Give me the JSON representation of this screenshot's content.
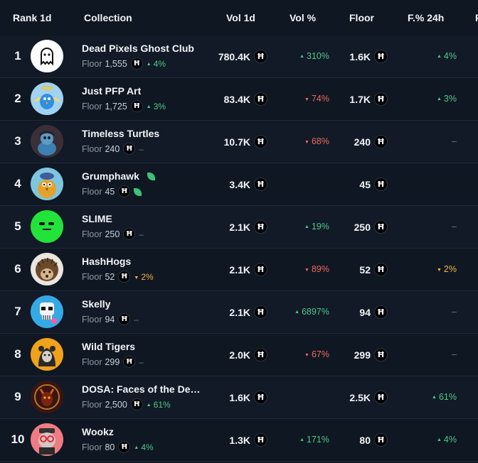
{
  "header": {
    "rank": "Rank 1d",
    "collection": "Collection",
    "vol": "Vol 1d",
    "vol_pct": "Vol %",
    "floor": "Floor",
    "floor_pct": "F.% 24h",
    "cut": "F"
  },
  "currency_symbol": "Ħ",
  "floor_label": "Floor",
  "rows": [
    {
      "rank": "1",
      "name": "Dead Pixels Ghost Club",
      "floor": "1,555",
      "sub_change": "4%",
      "sub_dir": "up",
      "vol": "780.4K",
      "vol_pct": "310%",
      "vol_dir": "up",
      "floor_big": "1.6K",
      "fp": "4%",
      "fp_dir": "up",
      "avatar": "ghost-avatar",
      "avatar_bg": "#ffffff"
    },
    {
      "rank": "2",
      "name": "Just PFP Art",
      "floor": "1,725",
      "sub_change": "3%",
      "sub_dir": "up",
      "vol": "83.4K",
      "vol_pct": "74%",
      "vol_dir": "down",
      "floor_big": "1.7K",
      "fp": "3%",
      "fp_dir": "up",
      "avatar": "angel-bird-avatar",
      "avatar_bg": "#9fd2f3"
    },
    {
      "rank": "3",
      "name": "Timeless Turtles",
      "floor": "240",
      "sub_change": "–",
      "sub_dir": "none",
      "vol": "10.7K",
      "vol_pct": "68%",
      "vol_dir": "down",
      "floor_big": "240",
      "fp": "–",
      "fp_dir": "none",
      "avatar": "turtle-avatar",
      "avatar_bg": "#3a2f38"
    },
    {
      "rank": "4",
      "name": "Grumphawk",
      "floor": "45",
      "sub_change": "",
      "sub_dir": "leaf",
      "vol": "3.4K",
      "vol_pct": "",
      "vol_dir": "none",
      "floor_big": "45",
      "fp": "",
      "fp_dir": "none",
      "avatar": "hawk-avatar",
      "avatar_bg": "#7ec6e0"
    },
    {
      "rank": "5",
      "name": "SLIME",
      "floor": "250",
      "sub_change": "–",
      "sub_dir": "none",
      "vol": "2.1K",
      "vol_pct": "19%",
      "vol_dir": "up",
      "floor_big": "250",
      "fp": "–",
      "fp_dir": "none",
      "avatar": "slime-avatar",
      "avatar_bg": "#22e33a"
    },
    {
      "rank": "6",
      "name": "HashHogs",
      "floor": "52",
      "sub_change": "2%",
      "sub_dir": "warn",
      "vol": "2.1K",
      "vol_pct": "89%",
      "vol_dir": "down",
      "floor_big": "52",
      "fp": "2%",
      "fp_dir": "warn",
      "avatar": "hedgehog-avatar",
      "avatar_bg": "#e9e6df"
    },
    {
      "rank": "7",
      "name": "Skelly",
      "floor": "94",
      "sub_change": "–",
      "sub_dir": "none",
      "vol": "2.1K",
      "vol_pct": "6897%",
      "vol_dir": "up",
      "floor_big": "94",
      "fp": "–",
      "fp_dir": "none",
      "avatar": "skull-avatar",
      "avatar_bg": "#35a9e6"
    },
    {
      "rank": "8",
      "name": "Wild Tigers",
      "floor": "299",
      "sub_change": "–",
      "sub_dir": "none",
      "vol": "2.0K",
      "vol_pct": "67%",
      "vol_dir": "down",
      "floor_big": "299",
      "fp": "–",
      "fp_dir": "none",
      "avatar": "tiger-avatar",
      "avatar_bg": "#f0a21b"
    },
    {
      "rank": "9",
      "name": "DOSA: Faces of the Dem…",
      "floor": "2,500",
      "sub_change": "61%",
      "sub_dir": "up",
      "vol": "1.6K",
      "vol_pct": "",
      "vol_dir": "none",
      "floor_big": "2.5K",
      "fp": "61%",
      "fp_dir": "up",
      "avatar": "demon-avatar",
      "avatar_bg": "#3b1410"
    },
    {
      "rank": "10",
      "name": "Wookz",
      "floor": "80",
      "sub_change": "4%",
      "sub_dir": "up",
      "vol": "1.3K",
      "vol_pct": "171%",
      "vol_dir": "up",
      "floor_big": "80",
      "fp": "4%",
      "fp_dir": "up",
      "avatar": "wookz-avatar",
      "avatar_bg": "#f07b84"
    }
  ]
}
